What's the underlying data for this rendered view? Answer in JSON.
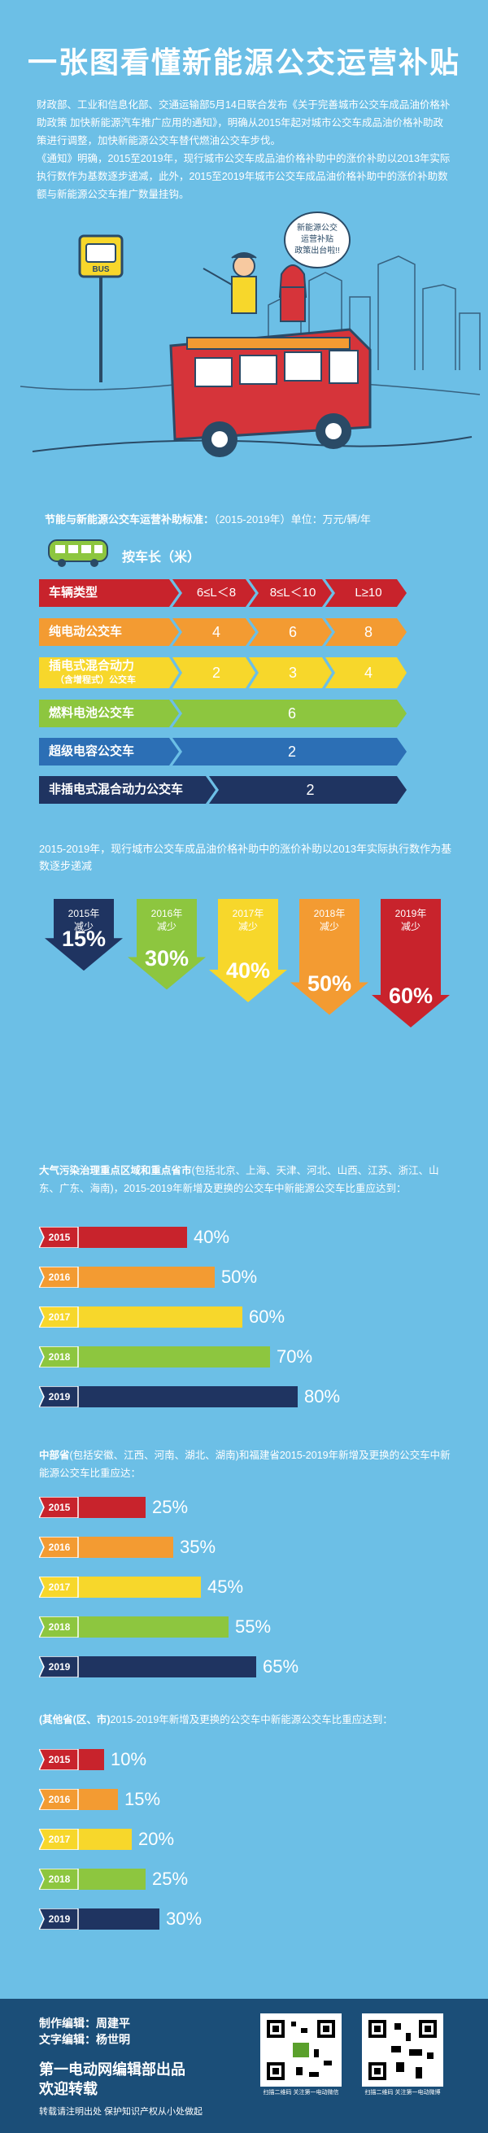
{
  "title": "一张图看懂新能源公交运营补贴",
  "intro": {
    "p1": "财政部、工业和信息化部、交通运输部5月14日联合发布《关于完善城市公交车成品油价格补助政策 加快新能源汽车推广应用的通知》，明确从2015年起对城市公交车成品油价格补助政策进行调整，加快新能源公交车替代燃油公交车步伐。",
    "p2": "《通知》明确，2015至2019年，现行城市公交车成品油价格补助中的涨价补助以2013年实际执行数作为基数逐步递减，此外，2015至2019年城市公交车成品油价格补助中的涨价补助数额与新能源公交车推广数量挂钩。"
  },
  "bubble": [
    "新能源公交",
    "运营补贴",
    "政策出台啦!!"
  ],
  "bus_sign": "BUS",
  "subsidy": {
    "title_bold": "节能与新能源公交车运营补助标准：",
    "title_rest": "（2015-2019年）单位：万元/辆/年",
    "length_label": "按车长（米）",
    "header": {
      "type": "车辆类型",
      "c1": "6≤L＜8",
      "c2": "8≤L＜10",
      "c3": "L≥10"
    },
    "rows": [
      {
        "type": "纯电动公交车",
        "v": [
          "4",
          "6",
          "8"
        ],
        "color": "#f39b32"
      },
      {
        "type": "插电式混合动力",
        "sub": "（含增程式）公交车",
        "v": [
          "2",
          "3",
          "4"
        ],
        "color": "#f7d72b"
      },
      {
        "type": "燃料电池公交车",
        "v": [
          "6"
        ],
        "color": "#8dc63f"
      },
      {
        "type": "超级电容公交车",
        "v": [
          "2"
        ],
        "color": "#2c6fb5"
      },
      {
        "type": "非插电式混合动力公交车",
        "v": [
          "2"
        ],
        "color": "#1f3461"
      }
    ],
    "header_color": "#c8232c"
  },
  "reduction": {
    "desc": "2015-2019年，现行城市公交车成品油价格补助中的涨价补助以2013年实际执行数作为基数逐步递减",
    "items": [
      {
        "year": "2015年",
        "word": "减少",
        "pct": "15%",
        "value": 15,
        "color": "#1f3461"
      },
      {
        "year": "2016年",
        "word": "减少",
        "pct": "30%",
        "value": 30,
        "color": "#8dc63f"
      },
      {
        "year": "2017年",
        "word": "减少",
        "pct": "40%",
        "value": 40,
        "color": "#f7d72b"
      },
      {
        "year": "2018年",
        "word": "减少",
        "pct": "50%",
        "value": 50,
        "color": "#f39b32"
      },
      {
        "year": "2019年",
        "word": "减少",
        "pct": "60%",
        "value": 60,
        "color": "#c8232c"
      }
    ]
  },
  "chart_data": [
    {
      "type": "bar",
      "title_bold": "大气污染治理重点区域和重点省市",
      "title_rest": "(包括北京、上海、天津、河北、山西、江苏、浙江、山东、广东、海南)，2015-2019年新增及更换的公交车中新能源公交车比重应达到：",
      "categories": [
        "2015",
        "2016",
        "2017",
        "2018",
        "2019"
      ],
      "values": [
        40,
        50,
        60,
        70,
        80
      ],
      "labels": [
        "40%",
        "50%",
        "60%",
        "70%",
        "80%"
      ]
    },
    {
      "type": "bar",
      "title_bold": "中部省",
      "title_rest": "(包括安徽、江西、河南、湖北、湖南)和福建省2015-2019年新增及更换的公交车中新能源公交车比重应达：",
      "categories": [
        "2015",
        "2016",
        "2017",
        "2018",
        "2019"
      ],
      "values": [
        25,
        35,
        45,
        55,
        65
      ],
      "labels": [
        "25%",
        "35%",
        "45%",
        "55%",
        "65%"
      ]
    },
    {
      "type": "bar",
      "title_bold": "(其他省(区、市)",
      "title_rest": "2015-2019年新增及更换的公交车中新能源公交车比重应达到：",
      "categories": [
        "2015",
        "2016",
        "2017",
        "2018",
        "2019"
      ],
      "values": [
        10,
        15,
        20,
        25,
        30
      ],
      "labels": [
        "10%",
        "15%",
        "20%",
        "25%",
        "30%"
      ]
    }
  ],
  "bar_colors": [
    "#c8232c",
    "#f39b32",
    "#f7d72b",
    "#8dc63f",
    "#1f3461"
  ],
  "footer": {
    "producer": "制作编辑：周建平",
    "writer": "文字编辑：杨世明",
    "org": "第一电动网编辑部出品",
    "welcome": "欢迎转载",
    "notice": "转载请注明出处  保护知识产权从小处做起",
    "qr1_caption": "扫描二维码 关注第一电动微信",
    "qr2_caption": "扫描二维码 关注第一电动微博"
  }
}
